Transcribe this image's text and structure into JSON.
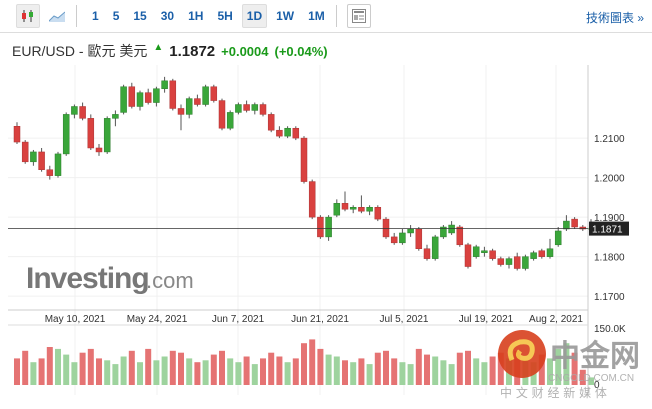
{
  "toolbar": {
    "chart_types": [
      {
        "name": "candlestick-icon"
      },
      {
        "name": "area-chart-icon"
      }
    ],
    "intervals": [
      "1",
      "5",
      "15",
      "30",
      "1H",
      "5H",
      "1D",
      "1W",
      "1M"
    ],
    "active": "1D",
    "tech_link": "技術圖表 »"
  },
  "header": {
    "symbol": "EUR/USD - 歐元 美元",
    "price": "1.1872",
    "change": "+0.0004",
    "change_pct": "(+0.04%)"
  },
  "watermark": {
    "logo": "Investing",
    "logo_suffix": ".com",
    "cn_logo": "中金网",
    "cn_url": "CNGOLD.COM.CN",
    "cn_tag": "中 文 财 经 新 媒 体"
  },
  "colors": {
    "up": "#3aa63a",
    "down": "#d9413f",
    "up_vol": "#9ed39e",
    "down_vol": "#e57373"
  },
  "chart_data": {
    "type": "candlestick",
    "ylim": [
      1.1665,
      1.2285
    ],
    "y_ticks": [
      "1.2100",
      "1.2000",
      "1.1900",
      "1.1800",
      "1.1700"
    ],
    "x_ticks": [
      "May 10, 2021",
      "May 24, 2021",
      "Jun 7, 2021",
      "Jun 21, 2021",
      "Jul 5, 2021",
      "Jul 19, 2021",
      "Aug 2, 2021"
    ],
    "current_price": "1.1871",
    "volume_ticks": [
      "150.0K",
      "0"
    ],
    "candles": [
      [
        1.213,
        1.214,
        1.2085,
        1.209,
        70
      ],
      [
        1.209,
        1.2095,
        1.2035,
        1.204,
        90
      ],
      [
        1.204,
        1.207,
        1.203,
        1.2065,
        60
      ],
      [
        1.2065,
        1.2075,
        1.2015,
        1.202,
        70
      ],
      [
        1.202,
        1.203,
        1.1995,
        1.2005,
        100
      ],
      [
        1.2005,
        1.2065,
        1.2,
        1.206,
        95
      ],
      [
        1.206,
        1.2165,
        1.2055,
        1.216,
        80
      ],
      [
        1.216,
        1.2185,
        1.215,
        1.218,
        60
      ],
      [
        1.218,
        1.219,
        1.2145,
        1.215,
        85
      ],
      [
        1.215,
        1.216,
        1.207,
        1.2075,
        95
      ],
      [
        1.2075,
        1.2085,
        1.2055,
        1.2065,
        70
      ],
      [
        1.2065,
        1.2155,
        1.206,
        1.215,
        65
      ],
      [
        1.215,
        1.217,
        1.213,
        1.216,
        55
      ],
      [
        1.2165,
        1.2235,
        1.216,
        1.223,
        75
      ],
      [
        1.223,
        1.224,
        1.2175,
        1.218,
        90
      ],
      [
        1.218,
        1.222,
        1.217,
        1.2215,
        60
      ],
      [
        1.2215,
        1.2225,
        1.2185,
        1.219,
        95
      ],
      [
        1.219,
        1.223,
        1.218,
        1.2225,
        65
      ],
      [
        1.2225,
        1.2255,
        1.2215,
        1.2245,
        75
      ],
      [
        1.2245,
        1.225,
        1.217,
        1.2175,
        90
      ],
      [
        1.2175,
        1.2185,
        1.212,
        1.216,
        85
      ],
      [
        1.216,
        1.2205,
        1.215,
        1.22,
        70
      ],
      [
        1.22,
        1.221,
        1.218,
        1.2185,
        60
      ],
      [
        1.2185,
        1.2235,
        1.218,
        1.223,
        65
      ],
      [
        1.223,
        1.2235,
        1.219,
        1.2195,
        80
      ],
      [
        1.2195,
        1.22,
        1.212,
        1.2125,
        90
      ],
      [
        1.2125,
        1.217,
        1.212,
        1.2165,
        70
      ],
      [
        1.2165,
        1.219,
        1.216,
        1.2185,
        60
      ],
      [
        1.2185,
        1.2195,
        1.2165,
        1.217,
        75
      ],
      [
        1.217,
        1.219,
        1.216,
        1.2185,
        55
      ],
      [
        1.2185,
        1.219,
        1.2155,
        1.216,
        70
      ],
      [
        1.216,
        1.2165,
        1.2115,
        1.212,
        85
      ],
      [
        1.212,
        1.213,
        1.21,
        1.2105,
        75
      ],
      [
        1.2105,
        1.213,
        1.21,
        1.2125,
        60
      ],
      [
        1.2125,
        1.213,
        1.2095,
        1.21,
        70
      ],
      [
        1.21,
        1.2105,
        1.1985,
        1.199,
        110
      ],
      [
        1.199,
        1.1995,
        1.1895,
        1.19,
        120
      ],
      [
        1.19,
        1.1905,
        1.1845,
        1.185,
        95
      ],
      [
        1.185,
        1.1905,
        1.184,
        1.19,
        80
      ],
      [
        1.1905,
        1.1945,
        1.19,
        1.1935,
        75
      ],
      [
        1.1935,
        1.1965,
        1.1915,
        1.192,
        65
      ],
      [
        1.192,
        1.193,
        1.191,
        1.1925,
        60
      ],
      [
        1.1925,
        1.1955,
        1.191,
        1.1915,
        70
      ],
      [
        1.1915,
        1.193,
        1.1905,
        1.1925,
        55
      ],
      [
        1.1925,
        1.193,
        1.189,
        1.1895,
        85
      ],
      [
        1.1895,
        1.19,
        1.1845,
        1.185,
        90
      ],
      [
        1.185,
        1.186,
        1.183,
        1.1835,
        70
      ],
      [
        1.1835,
        1.187,
        1.183,
        1.186,
        60
      ],
      [
        1.186,
        1.188,
        1.185,
        1.187,
        55
      ],
      [
        1.187,
        1.1875,
        1.1815,
        1.182,
        95
      ],
      [
        1.182,
        1.183,
        1.179,
        1.1795,
        80
      ],
      [
        1.1795,
        1.1855,
        1.179,
        1.185,
        75
      ],
      [
        1.185,
        1.188,
        1.1845,
        1.1875,
        65
      ],
      [
        1.186,
        1.189,
        1.1855,
        1.188,
        55
      ],
      [
        1.1875,
        1.188,
        1.1825,
        1.183,
        85
      ],
      [
        1.183,
        1.1835,
        1.177,
        1.1775,
        90
      ],
      [
        1.18,
        1.183,
        1.1795,
        1.1825,
        70
      ],
      [
        1.181,
        1.1825,
        1.18,
        1.1815,
        60
      ],
      [
        1.1815,
        1.182,
        1.179,
        1.1795,
        75
      ],
      [
        1.1795,
        1.18,
        1.1775,
        1.178,
        85
      ],
      [
        1.178,
        1.18,
        1.177,
        1.1795,
        70
      ],
      [
        1.18,
        1.181,
        1.1765,
        1.177,
        90
      ],
      [
        1.177,
        1.1805,
        1.1765,
        1.18,
        65
      ],
      [
        1.1795,
        1.1815,
        1.179,
        1.181,
        60
      ],
      [
        1.1815,
        1.182,
        1.1795,
        1.18,
        80
      ],
      [
        1.18,
        1.1845,
        1.1795,
        1.182,
        70
      ],
      [
        1.183,
        1.1875,
        1.1825,
        1.1865,
        95
      ],
      [
        1.187,
        1.1905,
        1.1865,
        1.189,
        110
      ],
      [
        1.1895,
        1.19,
        1.187,
        1.1875,
        85
      ],
      [
        1.1875,
        1.188,
        1.1865,
        1.187,
        40
      ],
      [
        1.187,
        1.1895,
        1.1865,
        1.1872,
        20
      ]
    ]
  }
}
